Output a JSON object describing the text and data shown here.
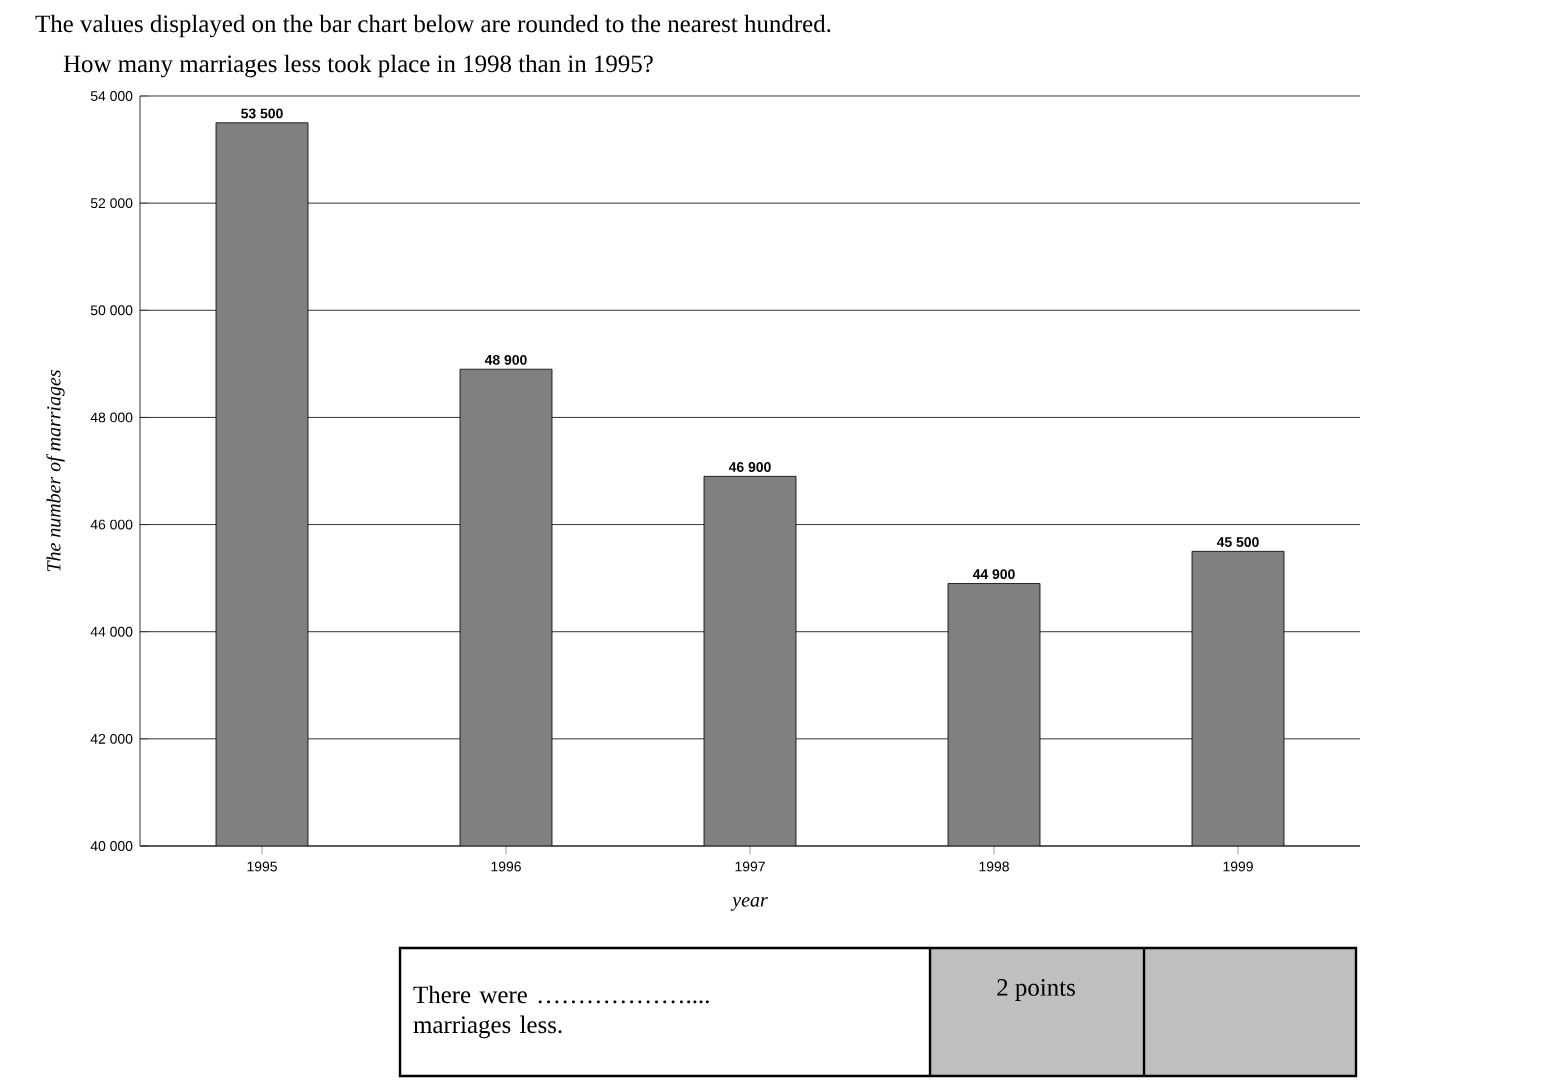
{
  "chart_data": {
    "type": "bar",
    "title": "The values displayed on the bar chart below are rounded to the nearest hundred.",
    "subtitle": "How many marriages less took place in 1998 than in 1995?",
    "xlabel": "year",
    "ylabel": "The number of marriages",
    "categories": [
      "1995",
      "1996",
      "1997",
      "1998",
      "1999"
    ],
    "values": [
      53500,
      48900,
      46900,
      44900,
      45500
    ],
    "value_labels": [
      "53 500",
      "48 900",
      "46 900",
      "44 900",
      "45 500"
    ],
    "color": "#808080",
    "ylim": [
      40000,
      54000
    ],
    "yticks": [
      {
        "value": 40000,
        "label": "40 000"
      },
      {
        "value": 42000,
        "label": "42 000"
      },
      {
        "value": 44000,
        "label": "44 000"
      },
      {
        "value": 46000,
        "label": "46 000"
      },
      {
        "value": 48000,
        "label": "48 000"
      },
      {
        "value": 50000,
        "label": "50 000"
      },
      {
        "value": 52000,
        "label": "52 000"
      },
      {
        "value": 54000,
        "label": "54 000"
      }
    ],
    "grid": "y",
    "annotations": [
      "There were ……………….... marriages less.",
      "2 points"
    ]
  }
}
